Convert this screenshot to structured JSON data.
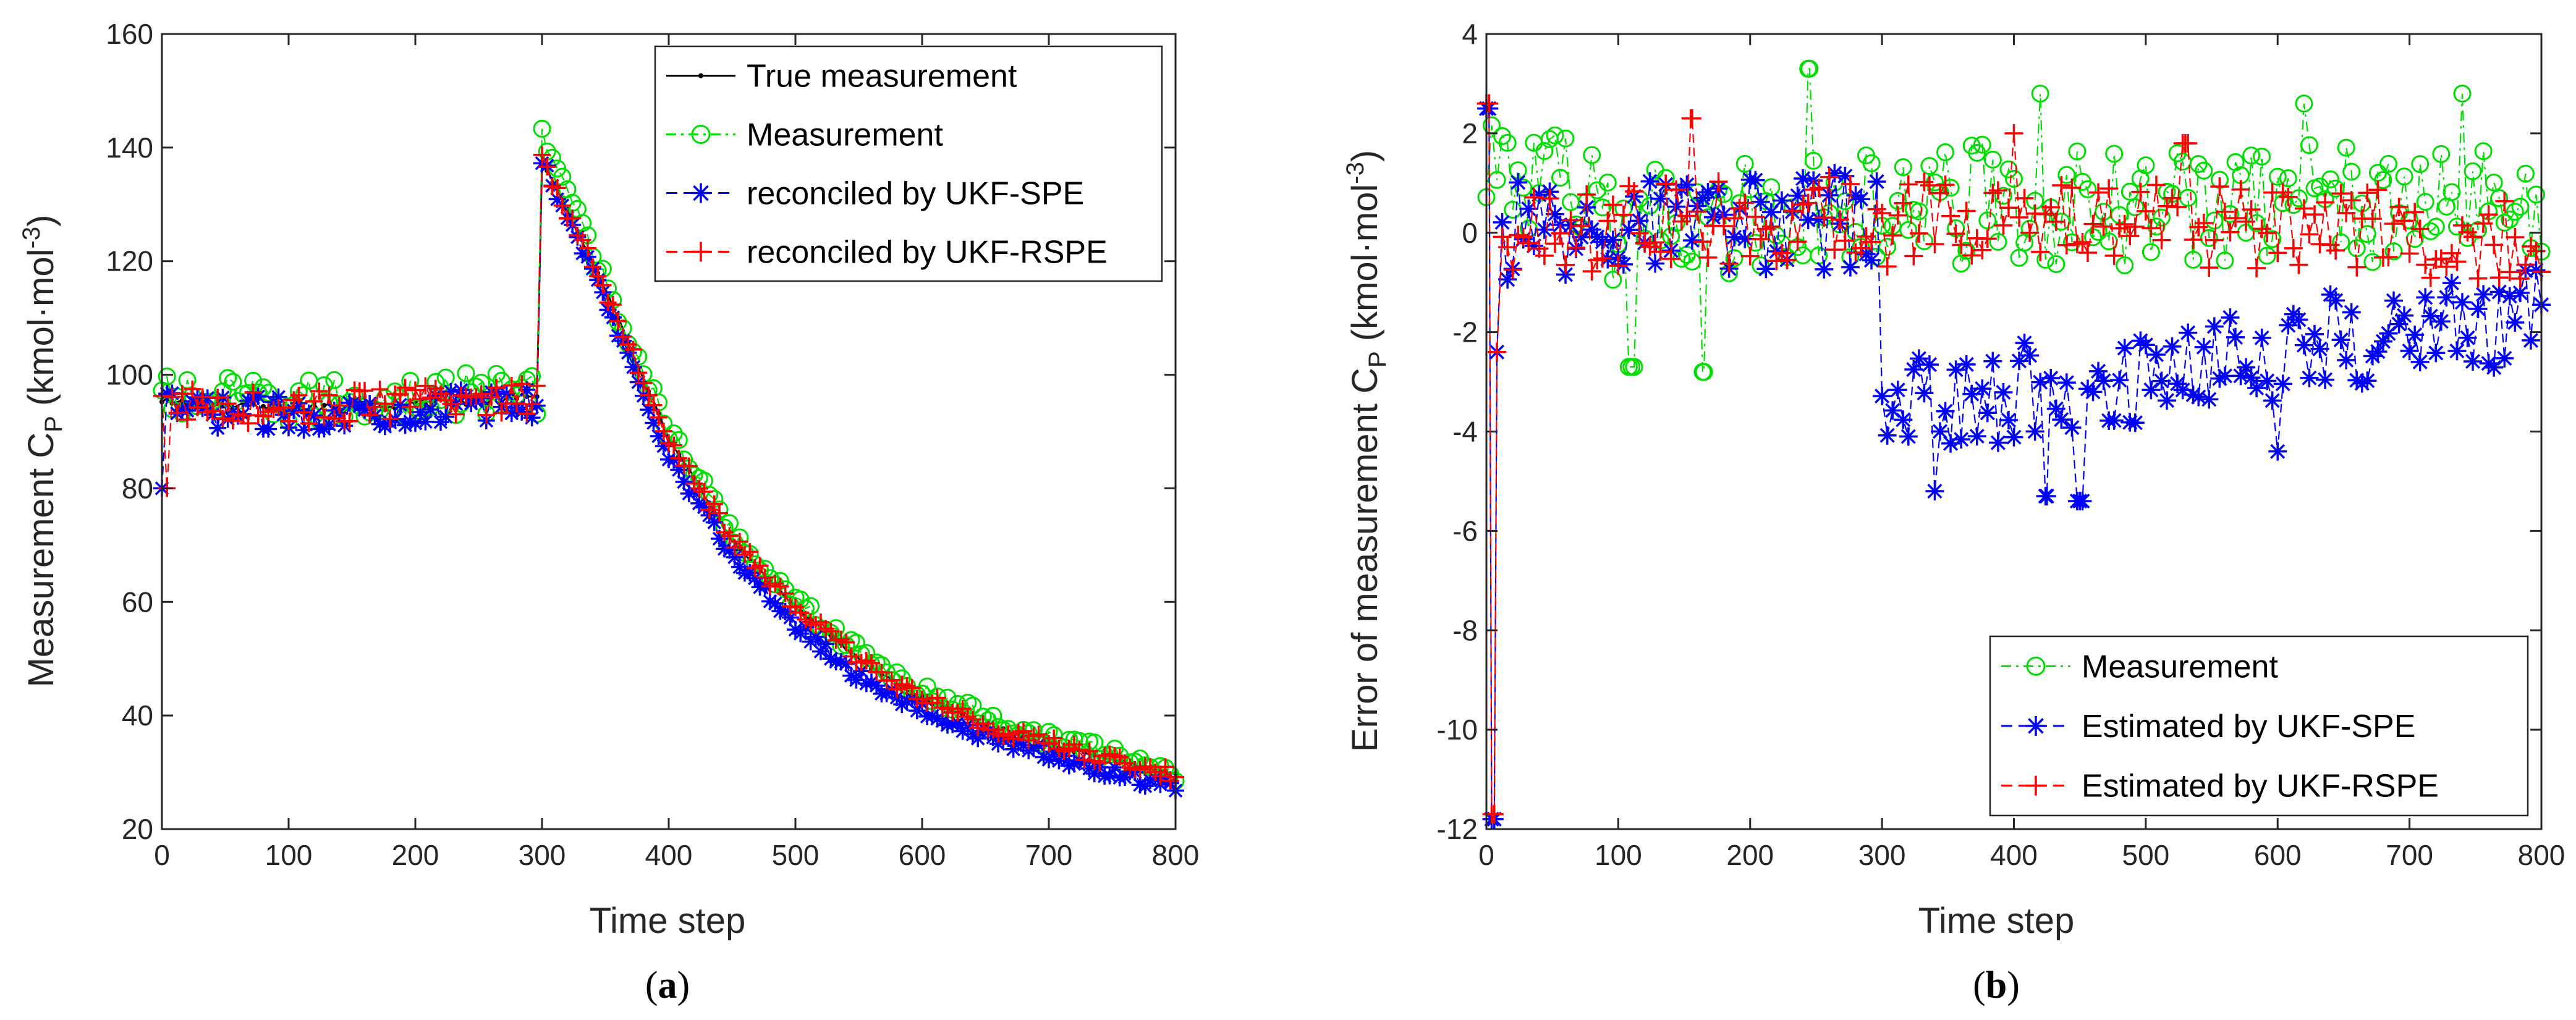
{
  "chart_data": [
    {
      "type": "line",
      "caption_open": "(",
      "caption_letter": "a",
      "caption_close": ")",
      "xlabel": "Time step",
      "ylabel": "Measurement C",
      "ylabel_sub": "P",
      "ylabel_unit": " (kmol·mol",
      "ylabel_sup": "-3",
      "ylabel_close": ")",
      "xlim": [
        0,
        800
      ],
      "ylim": [
        20,
        160
      ],
      "xticks": [
        0,
        100,
        200,
        300,
        400,
        500,
        600,
        700,
        800
      ],
      "yticks": [
        20,
        40,
        60,
        80,
        100,
        120,
        140,
        160
      ],
      "grid": false,
      "legend_position": "top-right",
      "series": [
        {
          "name": "True measurement",
          "color": "#000000",
          "marker": "dot",
          "offset": 0,
          "anchors": [
            [
              0,
              95
            ],
            [
              100,
              94
            ],
            [
              200,
              95
            ],
            [
              299,
              96
            ],
            [
              300,
              138
            ],
            [
              350,
              115
            ],
            [
              400,
              89
            ],
            [
              450,
              71
            ],
            [
              500,
              59
            ],
            [
              550,
              50
            ],
            [
              600,
              43
            ],
            [
              650,
              38.5
            ],
            [
              700,
              35
            ],
            [
              750,
              32
            ],
            [
              800,
              29.5
            ]
          ],
          "noise_lo": 1.5,
          "noise_hi": 0.6
        },
        {
          "name": "Measurement",
          "color": "#00dd00",
          "marker": "circle",
          "offset": 1.2,
          "anchors": [
            [
              0,
              96
            ],
            [
              100,
              95
            ],
            [
              200,
              96
            ],
            [
              299,
              97
            ],
            [
              300,
              143
            ],
            [
              350,
              116
            ],
            [
              400,
              90
            ],
            [
              450,
              72
            ],
            [
              500,
              60
            ],
            [
              550,
              51
            ],
            [
              600,
              44
            ],
            [
              650,
              39.5
            ],
            [
              700,
              36
            ],
            [
              750,
              33
            ],
            [
              800,
              30
            ]
          ],
          "noise_lo": 4.0,
          "noise_hi": 1.6
        },
        {
          "name": "reconciled by UKF-SPE",
          "color": "#0000ff",
          "marker": "star",
          "offset": -1.5,
          "anchors": [
            [
              0,
              94
            ],
            [
              100,
              93
            ],
            [
              200,
              94
            ],
            [
              299,
              95
            ],
            [
              300,
              138
            ],
            [
              350,
              113
            ],
            [
              400,
              86
            ],
            [
              450,
              68
            ],
            [
              500,
              56
            ],
            [
              550,
              47
            ],
            [
              600,
              41
            ],
            [
              650,
              36.5
            ],
            [
              700,
              33
            ],
            [
              750,
              30
            ],
            [
              800,
              27.5
            ]
          ],
          "noise_lo": 3.0,
          "noise_hi": 1.2
        },
        {
          "name": "reconciled by UKF-RSPE",
          "color": "#ff0000",
          "marker": "plus",
          "offset": 0.3,
          "anchors": [
            [
              0,
              95
            ],
            [
              100,
              94
            ],
            [
              200,
              95
            ],
            [
              299,
              96
            ],
            [
              300,
              138
            ],
            [
              350,
              115
            ],
            [
              400,
              89
            ],
            [
              450,
              71
            ],
            [
              500,
              59
            ],
            [
              550,
              50
            ],
            [
              600,
              43
            ],
            [
              650,
              38.5
            ],
            [
              700,
              35
            ],
            [
              750,
              32
            ],
            [
              800,
              29.5
            ]
          ],
          "noise_lo": 3.0,
          "noise_hi": 1.3
        }
      ]
    },
    {
      "type": "line",
      "caption_open": "(",
      "caption_letter": "b",
      "caption_close": ")",
      "xlabel": "Time step",
      "ylabel": "Error of measurement C",
      "ylabel_sub": "P",
      "ylabel_unit": " (kmol·mol",
      "ylabel_sup": "-3",
      "ylabel_close": ")",
      "xlim": [
        0,
        800
      ],
      "ylim": [
        -12,
        4
      ],
      "xticks": [
        0,
        100,
        200,
        300,
        400,
        500,
        600,
        700,
        800
      ],
      "yticks": [
        -12,
        -10,
        -8,
        -6,
        -4,
        -2,
        0,
        2,
        4
      ],
      "grid": false,
      "legend_position": "bottom-right",
      "series": [
        {
          "name": "Measurement",
          "color": "#00dd00",
          "marker": "circle",
          "anchors": [
            [
              0,
              1.5
            ],
            [
              100,
              0.2
            ],
            [
              200,
              0.3
            ],
            [
              299,
              0.4
            ],
            [
              300,
              0.5
            ],
            [
              400,
              0.6
            ],
            [
              500,
              0.5
            ],
            [
              600,
              0.6
            ],
            [
              700,
              0.6
            ],
            [
              800,
              0.5
            ]
          ],
          "noise": 1.2,
          "spikes": [
            [
              245,
              3.3
            ],
            [
              420,
              2.8
            ],
            [
              165,
              -2.8
            ],
            [
              110,
              -2.7
            ],
            [
              740,
              2.8
            ],
            [
              620,
              2.6
            ]
          ]
        },
        {
          "name": "Estimated by UKF-SPE",
          "color": "#0000ff",
          "marker": "star",
          "anchors": [
            [
              0,
              0
            ],
            [
              100,
              0.1
            ],
            [
              200,
              0.2
            ],
            [
              299,
              0.3
            ],
            [
              300,
              -3.3
            ],
            [
              350,
              -3.5
            ],
            [
              400,
              -3.2
            ],
            [
              450,
              -3.0
            ],
            [
              500,
              -2.8
            ],
            [
              600,
              -2.4
            ],
            [
              700,
              -2.0
            ],
            [
              800,
              -1.7
            ]
          ],
          "noise": 1.0,
          "spikes": [
            [
              2,
              2.5
            ],
            [
              4,
              -5.6
            ],
            [
              6,
              -11.8
            ],
            [
              8,
              -2.4
            ],
            [
              450,
              -5.4
            ],
            [
              425,
              -5.3
            ],
            [
              340,
              -5.2
            ],
            [
              600,
              -4.4
            ]
          ]
        },
        {
          "name": "Estimated by UKF-RSPE",
          "color": "#ff0000",
          "marker": "plus",
          "anchors": [
            [
              0,
              0
            ],
            [
              100,
              0.1
            ],
            [
              200,
              0.2
            ],
            [
              299,
              0.3
            ],
            [
              300,
              0.1
            ],
            [
              400,
              0.2
            ],
            [
              500,
              0.1
            ],
            [
              600,
              0.2
            ],
            [
              700,
              0.0
            ],
            [
              800,
              -0.1
            ]
          ],
          "noise": 0.9,
          "spikes": [
            [
              2,
              2.6
            ],
            [
              4,
              -5.7
            ],
            [
              6,
              -11.7
            ],
            [
              8,
              -2.4
            ],
            [
              155,
              2.3
            ],
            [
              400,
              2.0
            ],
            [
              530,
              1.8
            ]
          ]
        }
      ]
    }
  ]
}
